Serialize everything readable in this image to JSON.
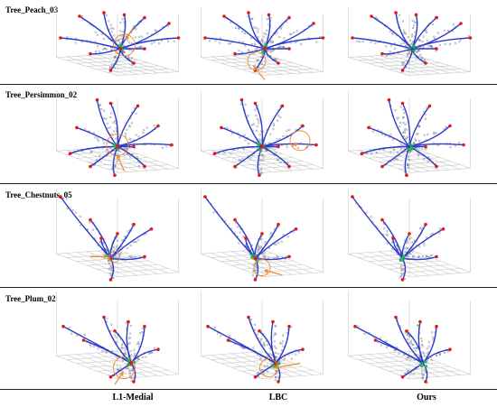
{
  "rows": [
    {
      "label": "Tree_Peach_03"
    },
    {
      "label": "Tree_Persimmon_02"
    },
    {
      "label": "Tree_Chestnuts_05"
    },
    {
      "label": "Tree_Plum_02"
    }
  ],
  "columns": [
    {
      "label": "L1-Medial"
    },
    {
      "label": "LBC"
    },
    {
      "label": "Ours"
    }
  ],
  "colors": {
    "skeleton": "#2a3bd0",
    "endpoint": "#e01818",
    "junction": "#18b84a",
    "annotation": "#f08a2a",
    "grid": "#c9c9c9"
  }
}
